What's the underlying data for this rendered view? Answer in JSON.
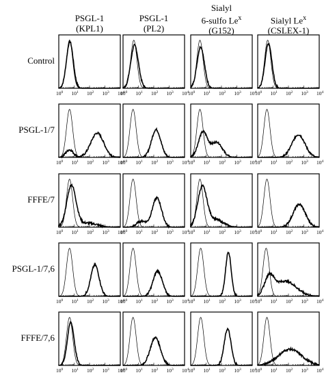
{
  "chart_data": {
    "type": "histogram-grid",
    "x_axis": {
      "scale": "log",
      "range": [
        1,
        10000
      ],
      "tick_exponents": [
        0,
        1,
        2,
        3,
        4
      ],
      "tick_base": "10"
    },
    "columns": [
      {
        "id": "kpl1",
        "lines": [
          "PSGL-1",
          "(KPL1)"
        ]
      },
      {
        "id": "pl2",
        "lines": [
          "PSGL-1",
          "(PL2)"
        ]
      },
      {
        "id": "g152",
        "lines": [
          "Sialyl",
          "6-sulfo Le",
          "(G152)"
        ],
        "sup_line_index": 1,
        "sup": "x"
      },
      {
        "id": "cslex1",
        "lines": [
          "Sialyl Le",
          "(CSLEX-1)"
        ],
        "sup_line_index": 0,
        "sup": "x"
      }
    ],
    "rows": [
      {
        "label": "Control",
        "panels": [
          {
            "control_peak": 0.7,
            "stained": [
              {
                "mean": 0.72,
                "sd": 0.22,
                "h": 0.92
              }
            ]
          },
          {
            "control_peak": 0.7,
            "stained": [
              {
                "mean": 0.75,
                "sd": 0.25,
                "h": 0.85
              }
            ]
          },
          {
            "control_peak": 0.6,
            "stained": [
              {
                "mean": 0.65,
                "sd": 0.24,
                "h": 0.82
              }
            ]
          },
          {
            "control_peak": 0.65,
            "stained": [
              {
                "mean": 0.7,
                "sd": 0.22,
                "h": 0.88
              }
            ]
          }
        ]
      },
      {
        "label": "PSGL-1/7",
        "panels": [
          {
            "control_peak": 0.7,
            "stained": [
              {
                "mean": 0.7,
                "sd": 0.25,
                "h": 0.15
              },
              {
                "mean": 2.5,
                "sd": 0.42,
                "h": 0.48
              }
            ]
          },
          {
            "control_peak": 0.65,
            "stained": [
              {
                "mean": 2.15,
                "sd": 0.3,
                "h": 0.55
              }
            ]
          },
          {
            "control_peak": 0.6,
            "stained": [
              {
                "mean": 0.8,
                "sd": 0.3,
                "h": 0.5
              },
              {
                "mean": 1.7,
                "sd": 0.35,
                "h": 0.3
              }
            ]
          },
          {
            "control_peak": 0.6,
            "stained": [
              {
                "mean": 2.65,
                "sd": 0.42,
                "h": 0.45
              }
            ]
          }
        ]
      },
      {
        "label": "FFFE/7",
        "panels": [
          {
            "control_peak": 0.7,
            "stained": [
              {
                "mean": 0.82,
                "sd": 0.3,
                "h": 0.82
              },
              {
                "mean": 1.9,
                "sd": 0.6,
                "h": 0.08
              }
            ]
          },
          {
            "control_peak": 0.65,
            "stained": [
              {
                "mean": 1.2,
                "sd": 0.3,
                "h": 0.12
              },
              {
                "mean": 2.2,
                "sd": 0.3,
                "h": 0.58
              }
            ]
          },
          {
            "control_peak": 0.6,
            "stained": [
              {
                "mean": 0.75,
                "sd": 0.3,
                "h": 0.78
              },
              {
                "mean": 1.6,
                "sd": 0.5,
                "h": 0.15
              }
            ]
          },
          {
            "control_peak": 0.6,
            "stained": [
              {
                "mean": 2.7,
                "sd": 0.4,
                "h": 0.45
              }
            ]
          }
        ]
      },
      {
        "label": "PSGL-1/7,6",
        "panels": [
          {
            "control_peak": 0.7,
            "stained": [
              {
                "mean": 2.35,
                "sd": 0.27,
                "h": 0.62
              }
            ]
          },
          {
            "control_peak": 0.65,
            "stained": [
              {
                "mean": 2.25,
                "sd": 0.3,
                "h": 0.5
              }
            ]
          },
          {
            "control_peak": 0.65,
            "stained": [
              {
                "mean": 2.45,
                "sd": 0.18,
                "h": 0.88
              }
            ]
          },
          {
            "control_peak": 0.55,
            "stained": [
              {
                "mean": 0.75,
                "sd": 0.3,
                "h": 0.35
              },
              {
                "mean": 1.8,
                "sd": 0.7,
                "h": 0.3
              }
            ]
          }
        ]
      },
      {
        "label": "FFFE/7,6",
        "panels": [
          {
            "control_peak": 0.7,
            "stained": [
              {
                "mean": 0.78,
                "sd": 0.22,
                "h": 0.85
              }
            ]
          },
          {
            "control_peak": 0.65,
            "stained": [
              {
                "mean": 2.1,
                "sd": 0.33,
                "h": 0.55
              }
            ]
          },
          {
            "control_peak": 0.65,
            "stained": [
              {
                "mean": 2.4,
                "sd": 0.22,
                "h": 0.72
              }
            ]
          },
          {
            "control_peak": 0.6,
            "stained": [
              {
                "mean": 2.1,
                "sd": 0.75,
                "h": 0.32
              }
            ]
          }
        ]
      }
    ]
  }
}
